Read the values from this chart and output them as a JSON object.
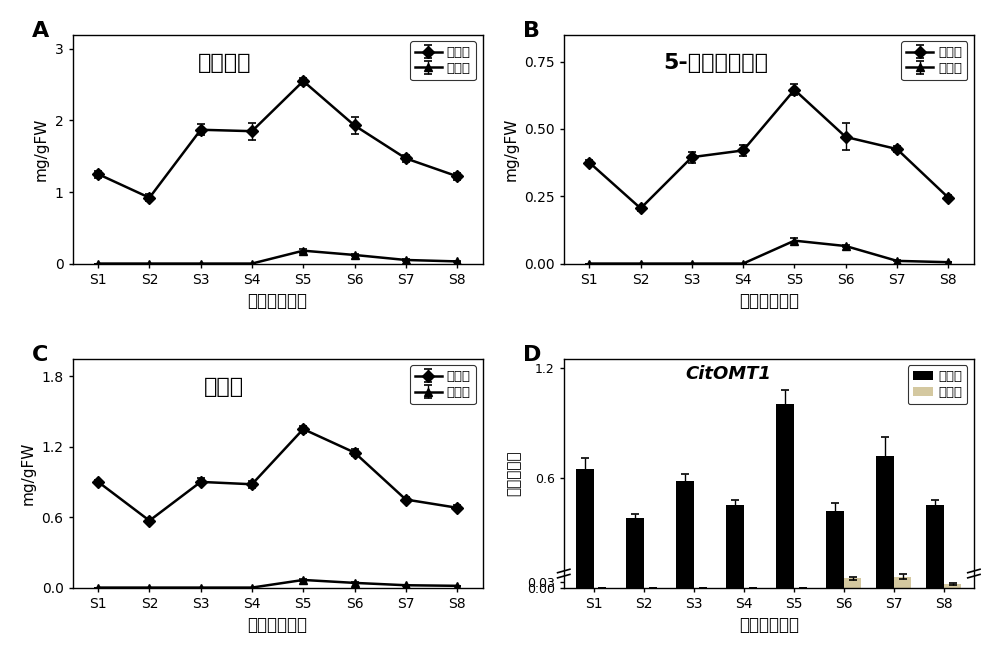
{
  "stages": [
    "S1",
    "S2",
    "S3",
    "S4",
    "S5",
    "S6",
    "S7",
    "S8"
  ],
  "A": {
    "title": "川陈皮素",
    "ylabel": "mg/gFW",
    "xlabel": "瓯柑发育阶段",
    "oil_y": [
      1.25,
      0.92,
      1.87,
      1.85,
      2.55,
      1.93,
      1.47,
      1.22
    ],
    "oil_err": [
      0.05,
      0.05,
      0.08,
      0.12,
      0.05,
      0.12,
      0.05,
      0.05
    ],
    "white_y": [
      0.0,
      0.0,
      0.0,
      0.0,
      0.18,
      0.12,
      0.05,
      0.03
    ],
    "white_err": [
      0.0,
      0.0,
      0.0,
      0.0,
      0.03,
      0.02,
      0.01,
      0.01
    ],
    "ylim": [
      0,
      3.2
    ],
    "yticks": [
      0,
      1,
      2,
      3
    ]
  },
  "B": {
    "title": "5-去甲川陈皮素",
    "ylabel": "mg/gFW",
    "xlabel": "瓯柑发育阶段",
    "oil_y": [
      0.375,
      0.205,
      0.395,
      0.42,
      0.645,
      0.47,
      0.425,
      0.245
    ],
    "oil_err": [
      0.01,
      0.01,
      0.02,
      0.02,
      0.02,
      0.05,
      0.01,
      0.01
    ],
    "white_y": [
      0.0,
      0.0,
      0.0,
      0.0,
      0.085,
      0.065,
      0.01,
      0.005
    ],
    "white_err": [
      0.0,
      0.0,
      0.0,
      0.0,
      0.01,
      0.005,
      0.002,
      0.001
    ],
    "ylim": [
      0,
      0.85
    ],
    "yticks": [
      0.0,
      0.25,
      0.5,
      0.75
    ]
  },
  "C": {
    "title": "橘皮素",
    "ylabel": "mg/gFW",
    "xlabel": "瓯柑发育阶段",
    "oil_y": [
      0.9,
      0.57,
      0.9,
      0.88,
      1.35,
      1.15,
      0.75,
      0.68
    ],
    "oil_err": [
      0.02,
      0.02,
      0.03,
      0.03,
      0.03,
      0.03,
      0.02,
      0.02
    ],
    "white_y": [
      0.0,
      0.0,
      0.0,
      0.0,
      0.065,
      0.04,
      0.02,
      0.015
    ],
    "white_err": [
      0.0,
      0.0,
      0.0,
      0.0,
      0.01,
      0.005,
      0.003,
      0.002
    ],
    "ylim": [
      0,
      1.95
    ],
    "yticks": [
      0.0,
      0.6,
      1.2,
      1.8
    ]
  },
  "D": {
    "title": "CitOMT1",
    "ylabel": "相对表达量",
    "xlabel": "瓯柑发育阶段",
    "oil_y": [
      0.65,
      0.38,
      0.58,
      0.45,
      1.0,
      0.42,
      0.72,
      0.45
    ],
    "oil_err": [
      0.06,
      0.02,
      0.04,
      0.03,
      0.08,
      0.04,
      0.1,
      0.03
    ],
    "white_y": [
      0.0,
      0.0,
      0.0,
      0.0,
      0.0,
      0.05,
      0.06,
      0.02
    ],
    "white_err": [
      0.0,
      0.0,
      0.0,
      0.0,
      0.0,
      0.01,
      0.015,
      0.005
    ],
    "ylim": [
      0,
      1.25
    ],
    "ytick_labels": [
      "0.00",
      "0.03",
      "0.6",
      "1.2"
    ],
    "ytick_vals": [
      0.0,
      0.03,
      0.6,
      1.2
    ]
  },
  "legend_oil": "油胞层",
  "legend_white": "白皮层",
  "panel_labels": [
    "A",
    "B",
    "C",
    "D"
  ]
}
